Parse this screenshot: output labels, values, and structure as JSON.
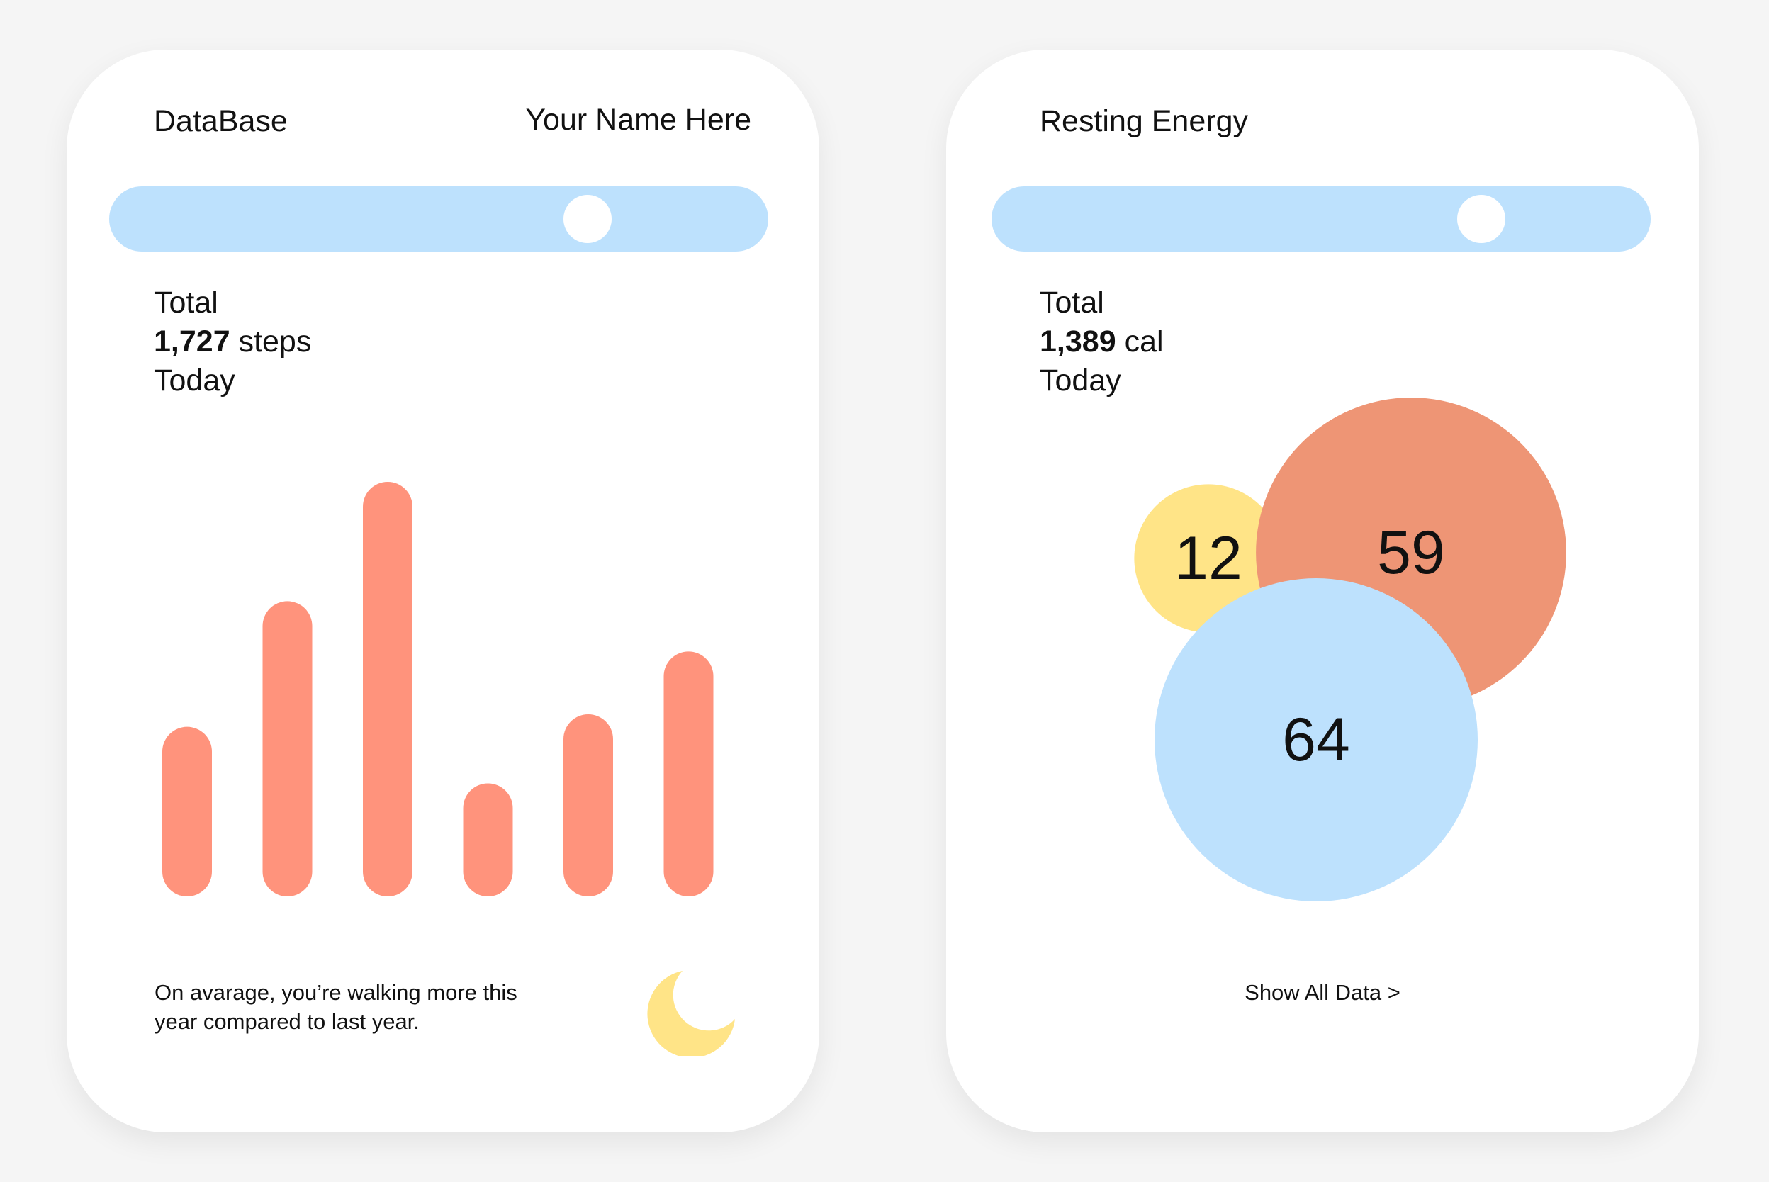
{
  "left_card": {
    "title": "DataBase",
    "username": "Your Name Here",
    "slider": {
      "value": 0.75
    },
    "stats": {
      "label": "Total",
      "value": "1,727",
      "unit": "steps",
      "period": "Today"
    },
    "footnote": "On avarage, you’re walking more this year compared to last year.",
    "moon_icon": "moon-icon"
  },
  "right_card": {
    "title": "Resting Energy",
    "slider": {
      "value": 0.77
    },
    "stats": {
      "label": "Total",
      "value": "1,389",
      "unit": "cal",
      "period": "Today"
    },
    "show_all_label": "Show All Data >"
  },
  "colors": {
    "background": "#f5f5f5",
    "card": "#ffffff",
    "slider_track": "#bde1fd",
    "bar": "#ff937c",
    "bubble_yellow": "#ffe487",
    "bubble_orange": "#ee9575",
    "bubble_blue": "#bde1fd",
    "moon": "#ffe487"
  },
  "chart_data": [
    {
      "type": "bar",
      "categories": [
        "",
        "",
        "",
        "",
        "",
        ""
      ],
      "values": [
        27,
        47,
        66,
        18,
        29,
        39
      ],
      "ylim": [
        0,
        66
      ],
      "title": "",
      "xlabel": "",
      "ylabel": "",
      "grid": false
    },
    {
      "type": "bubble",
      "values": [
        12,
        59,
        64
      ],
      "labels": [
        "12",
        "59",
        "64"
      ],
      "colors": [
        "#ffe487",
        "#ee9575",
        "#bde1fd"
      ],
      "title": ""
    }
  ]
}
